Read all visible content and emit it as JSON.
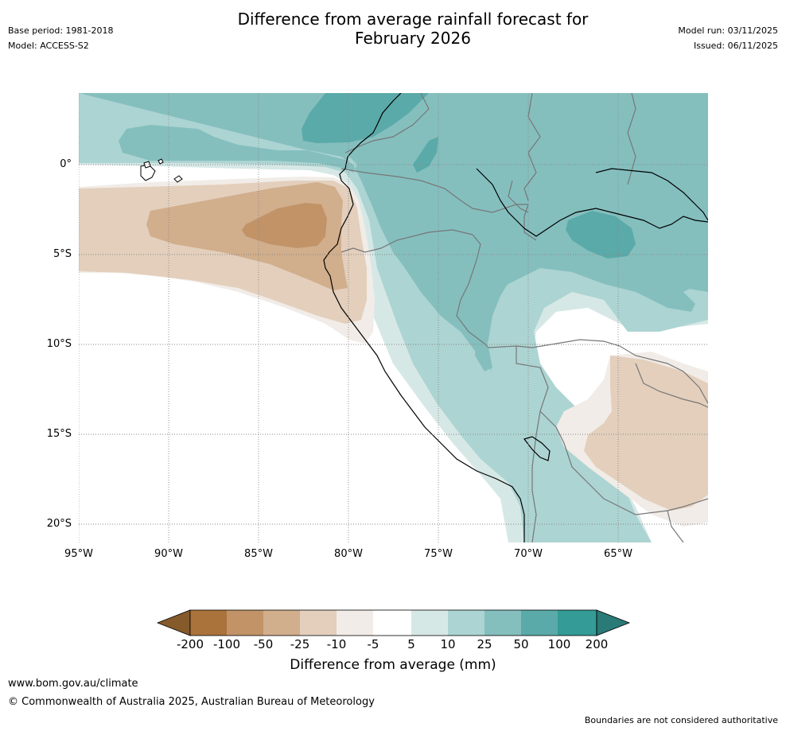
{
  "header": {
    "title_line1": "Difference from average rainfall forecast for",
    "title_line2": "February 2026",
    "base_period": "Base period: 1981-2018",
    "model": "Model: ACCESS-S2",
    "model_run": "Model run: 03/11/2025",
    "issued": "Issued: 06/11/2025"
  },
  "map": {
    "lat_labels": [
      "0°",
      "5°S",
      "10°S",
      "15°S",
      "20°S"
    ],
    "lon_labels": [
      "95°W",
      "90°W",
      "85°W",
      "80°W",
      "75°W",
      "70°W",
      "65°W"
    ]
  },
  "colorbar": {
    "title": "Difference from average (mm)",
    "labels": [
      "-200",
      "-100",
      "-50",
      "-25",
      "-10",
      "-5",
      "5",
      "10",
      "25",
      "50",
      "100",
      "200"
    ],
    "colors": {
      "lt_-200": "#865a2a",
      "c1": "#aa733b",
      "c2": "#c19367",
      "c3": "#d1ae8c",
      "c4": "#e3cfbc",
      "c5": "#f1ece7",
      "c6": "#ffffff",
      "c7": "#d6e8e6",
      "c8": "#acd4d2",
      "c9": "#84bfbe",
      "c10": "#5aaaa9",
      "c11": "#349b96",
      "gt_200": "#2a7a77"
    }
  },
  "footer": {
    "url": "www.bom.gov.au/climate",
    "copyright": "© Commonwealth of Australia 2025, Australian Bureau of Meteorology",
    "disclaimer": "Boundaries are not considered authoritative"
  }
}
